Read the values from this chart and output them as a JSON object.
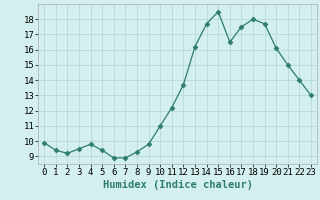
{
  "x": [
    0,
    1,
    2,
    3,
    4,
    5,
    6,
    7,
    8,
    9,
    10,
    11,
    12,
    13,
    14,
    15,
    16,
    17,
    18,
    19,
    20,
    21,
    22,
    23
  ],
  "y": [
    9.9,
    9.4,
    9.2,
    9.5,
    9.8,
    9.4,
    8.9,
    8.9,
    9.3,
    9.8,
    11.0,
    12.2,
    13.7,
    16.2,
    17.7,
    18.5,
    16.5,
    17.5,
    18.0,
    17.7,
    16.1,
    15.0,
    14.0,
    13.0
  ],
  "line_color": "#2e7d6e",
  "marker": "D",
  "marker_size": 2.5,
  "bg_color": "#d4efef",
  "grid_color": "#b8d8d8",
  "xlabel": "Humidex (Indice chaleur)",
  "ylim": [
    8.5,
    19.0
  ],
  "xlim": [
    -0.5,
    23.5
  ],
  "yticks": [
    9,
    10,
    11,
    12,
    13,
    14,
    15,
    16,
    17,
    18
  ],
  "xticks": [
    0,
    1,
    2,
    3,
    4,
    5,
    6,
    7,
    8,
    9,
    10,
    11,
    12,
    13,
    14,
    15,
    16,
    17,
    18,
    19,
    20,
    21,
    22,
    23
  ],
  "tick_fontsize": 6.5,
  "xlabel_fontsize": 7.5
}
